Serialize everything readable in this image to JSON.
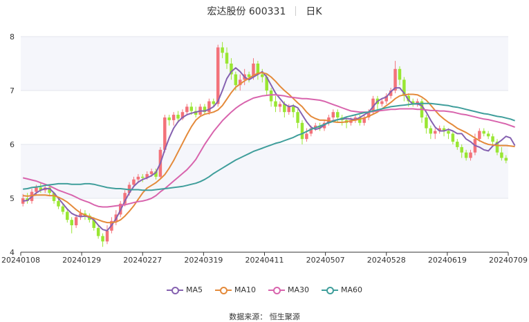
{
  "title": {
    "name": "宏达股份 600331",
    "period": "日K"
  },
  "source": "数据来源： 恒生聚源",
  "colors": {
    "up": "#f3727a",
    "down": "#99e632",
    "ma5": "#8561b0",
    "ma10": "#e48a3a",
    "ma30": "#d864ad",
    "ma60": "#3f9e9b"
  },
  "chart_data": {
    "type": "candlestick",
    "y_ticks": [
      "4",
      "5",
      "6",
      "7",
      "8"
    ],
    "ylim": [
      4,
      8
    ],
    "x_labels": [
      "20240108",
      "20240129",
      "20240227",
      "20240319",
      "20240411",
      "20240507",
      "20240528",
      "20240619",
      "20240709"
    ],
    "legend": [
      "MA5",
      "MA10",
      "MA30",
      "MA60"
    ],
    "grid": true,
    "series": [
      {
        "name": "MA5",
        "values": [
          4.95,
          4.96,
          5.03,
          5.1,
          5.15,
          5.18,
          5.18,
          5.1,
          5.0,
          4.9,
          4.8,
          4.72,
          4.68,
          4.66,
          4.67,
          4.65,
          4.6,
          4.5,
          4.42,
          4.4,
          4.5,
          4.62,
          4.78,
          4.95,
          5.1,
          5.22,
          5.3,
          5.35,
          5.38,
          5.42,
          5.48,
          5.65,
          5.9,
          6.12,
          6.3,
          6.42,
          6.5,
          6.55,
          6.58,
          6.6,
          6.62,
          6.62,
          6.65,
          6.7,
          6.8,
          7.0,
          7.22,
          7.35,
          7.42,
          7.35,
          7.25,
          7.2,
          7.25,
          7.3,
          7.35,
          7.25,
          7.1,
          6.95,
          6.85,
          6.75,
          6.7,
          6.72,
          6.68,
          6.55,
          6.42,
          6.32,
          6.28,
          6.3,
          6.36,
          6.42,
          6.44,
          6.46,
          6.47,
          6.48,
          6.47,
          6.46,
          6.5,
          6.55,
          6.6,
          6.7,
          6.8,
          6.85,
          6.88,
          6.98,
          7.05,
          7.05,
          6.95,
          6.82,
          6.75,
          6.75,
          6.72,
          6.6,
          6.45,
          6.32,
          6.25,
          6.25,
          6.28,
          6.25,
          6.2,
          6.2,
          6.1,
          6.05,
          5.98,
          5.95,
          5.9,
          5.88,
          5.97,
          6.02,
          6.08,
          6.15,
          6.12,
          5.98
        ]
      },
      {
        "name": "MA10",
        "values": [
          5.05,
          5.04,
          5.05,
          5.06,
          5.06,
          5.06,
          5.05,
          5.05,
          5.02,
          4.98,
          4.93,
          4.86,
          4.79,
          4.73,
          4.69,
          4.66,
          4.63,
          4.6,
          4.57,
          4.55,
          4.55,
          4.56,
          4.6,
          4.67,
          4.76,
          4.86,
          4.98,
          5.1,
          5.19,
          5.24,
          5.29,
          5.36,
          5.44,
          5.56,
          5.7,
          5.86,
          6.02,
          6.18,
          6.33,
          6.45,
          6.52,
          6.56,
          6.58,
          6.6,
          6.64,
          6.72,
          6.84,
          6.96,
          7.06,
          7.12,
          7.18,
          7.23,
          7.28,
          7.32,
          7.33,
          7.31,
          7.25,
          7.17,
          7.08,
          7.0,
          6.93,
          6.85,
          6.77,
          6.7,
          6.6,
          6.52,
          6.48,
          6.45,
          6.45,
          6.44,
          6.42,
          6.41,
          6.41,
          6.42,
          6.44,
          6.45,
          6.47,
          6.49,
          6.52,
          6.56,
          6.6,
          6.66,
          6.72,
          6.78,
          6.85,
          6.9,
          6.92,
          6.93,
          6.93,
          6.92,
          6.88,
          6.82,
          6.73,
          6.63,
          6.54,
          6.47,
          6.41,
          6.36,
          6.3,
          6.26,
          6.22,
          6.17,
          6.12,
          6.07,
          6.03,
          6.0,
          5.99,
          5.98,
          5.98,
          5.98,
          5.97,
          5.96
        ]
      },
      {
        "name": "MA30",
        "values": [
          5.38,
          5.36,
          5.34,
          5.32,
          5.29,
          5.26,
          5.23,
          5.19,
          5.15,
          5.12,
          5.09,
          5.06,
          5.02,
          4.98,
          4.95,
          4.92,
          4.88,
          4.85,
          4.84,
          4.84,
          4.85,
          4.86,
          4.87,
          4.88,
          4.9,
          4.92,
          4.94,
          4.95,
          4.97,
          5.0,
          5.05,
          5.12,
          5.18,
          5.25,
          5.32,
          5.39,
          5.46,
          5.53,
          5.62,
          5.72,
          5.86,
          6.0,
          6.12,
          6.24,
          6.34,
          6.44,
          6.52,
          6.6,
          6.67,
          6.73,
          6.78,
          6.82,
          6.86,
          6.88,
          6.9,
          6.91,
          6.92,
          6.92,
          6.91,
          6.9,
          6.88,
          6.87,
          6.86,
          6.85,
          6.85,
          6.84,
          6.83,
          6.82,
          6.8,
          6.77,
          6.74,
          6.71,
          6.68,
          6.65,
          6.62,
          6.61,
          6.6,
          6.6,
          6.6,
          6.61,
          6.62,
          6.63,
          6.64,
          6.65,
          6.65,
          6.66,
          6.66,
          6.66,
          6.66,
          6.65,
          6.65,
          6.64,
          6.63,
          6.63,
          6.62,
          6.62,
          6.61,
          6.6,
          6.58,
          6.56,
          6.55,
          6.53,
          6.51,
          6.49,
          6.47,
          6.46,
          6.44,
          6.42,
          6.4,
          6.38,
          6.35,
          6.32
        ]
      },
      {
        "name": "MA60",
        "values": [
          5.17,
          5.18,
          5.2,
          5.21,
          5.22,
          5.24,
          5.25,
          5.26,
          5.27,
          5.27,
          5.27,
          5.26,
          5.26,
          5.26,
          5.27,
          5.27,
          5.26,
          5.24,
          5.22,
          5.2,
          5.19,
          5.18,
          5.18,
          5.17,
          5.16,
          5.16,
          5.16,
          5.15,
          5.15,
          5.15,
          5.16,
          5.17,
          5.18,
          5.19,
          5.2,
          5.21,
          5.22,
          5.24,
          5.26,
          5.28,
          5.31,
          5.35,
          5.4,
          5.46,
          5.51,
          5.56,
          5.61,
          5.66,
          5.71,
          5.75,
          5.79,
          5.83,
          5.87,
          5.9,
          5.93,
          5.96,
          5.99,
          6.02,
          6.04,
          6.07,
          6.1,
          6.13,
          6.17,
          6.2,
          6.24,
          6.28,
          6.31,
          6.34,
          6.37,
          6.4,
          6.43,
          6.46,
          6.48,
          6.51,
          6.53,
          6.55,
          6.57,
          6.59,
          6.6,
          6.62,
          6.64,
          6.66,
          6.68,
          6.7,
          6.71,
          6.72,
          6.73,
          6.74,
          6.75,
          6.76,
          6.76,
          6.76,
          6.76,
          6.75,
          6.74,
          6.73,
          6.72,
          6.7,
          6.69,
          6.67,
          6.65,
          6.63,
          6.61,
          6.59,
          6.57,
          6.56,
          6.54,
          6.52,
          6.51,
          6.49,
          6.47,
          6.44
        ]
      }
    ],
    "candles": [
      [
        4.9,
        5.0,
        4.85,
        5.08
      ],
      [
        5.0,
        4.95,
        4.9,
        5.1
      ],
      [
        4.95,
        5.12,
        4.9,
        5.18
      ],
      [
        5.12,
        5.2,
        5.05,
        5.25
      ],
      [
        5.2,
        5.15,
        5.1,
        5.28
      ],
      [
        5.15,
        5.2,
        5.1,
        5.25
      ],
      [
        5.2,
        5.1,
        5.05,
        5.22
      ],
      [
        5.1,
        4.95,
        4.9,
        5.12
      ],
      [
        4.95,
        4.85,
        4.8,
        5.0
      ],
      [
        4.85,
        4.75,
        4.7,
        4.9
      ],
      [
        4.75,
        4.6,
        4.55,
        4.8
      ],
      [
        4.6,
        4.5,
        4.35,
        4.65
      ],
      [
        4.5,
        4.65,
        4.45,
        4.7
      ],
      [
        4.65,
        4.72,
        4.6,
        4.8
      ],
      [
        4.72,
        4.68,
        4.6,
        4.78
      ],
      [
        4.68,
        4.6,
        4.55,
        4.72
      ],
      [
        4.6,
        4.45,
        4.4,
        4.65
      ],
      [
        4.45,
        4.3,
        4.25,
        4.5
      ],
      [
        4.3,
        4.2,
        4.1,
        4.35
      ],
      [
        4.2,
        4.4,
        4.15,
        4.5
      ],
      [
        4.4,
        4.58,
        4.35,
        4.65
      ],
      [
        4.58,
        4.7,
        4.5,
        4.78
      ],
      [
        4.7,
        4.9,
        4.65,
        4.95
      ],
      [
        4.9,
        5.1,
        4.85,
        5.15
      ],
      [
        5.1,
        5.25,
        5.05,
        5.3
      ],
      [
        5.25,
        5.35,
        5.2,
        5.4
      ],
      [
        5.35,
        5.4,
        5.3,
        5.45
      ],
      [
        5.4,
        5.38,
        5.3,
        5.45
      ],
      [
        5.38,
        5.45,
        5.35,
        5.5
      ],
      [
        5.45,
        5.5,
        5.4,
        5.55
      ],
      [
        5.5,
        5.4,
        5.35,
        5.55
      ],
      [
        5.4,
        5.9,
        5.38,
        5.95
      ],
      [
        5.9,
        6.5,
        5.85,
        6.55
      ],
      [
        6.5,
        6.45,
        6.35,
        6.55
      ],
      [
        6.45,
        6.55,
        6.35,
        6.6
      ],
      [
        6.55,
        6.48,
        6.4,
        6.62
      ],
      [
        6.48,
        6.6,
        6.45,
        6.65
      ],
      [
        6.6,
        6.7,
        6.55,
        6.75
      ],
      [
        6.7,
        6.62,
        6.55,
        6.78
      ],
      [
        6.62,
        6.55,
        6.5,
        6.7
      ],
      [
        6.55,
        6.7,
        6.52,
        6.75
      ],
      [
        6.7,
        6.6,
        6.55,
        6.75
      ],
      [
        6.6,
        6.8,
        6.55,
        6.85
      ],
      [
        6.8,
        6.75,
        6.7,
        6.85
      ],
      [
        6.75,
        7.8,
        6.7,
        7.85
      ],
      [
        7.8,
        7.7,
        7.6,
        7.9
      ],
      [
        7.7,
        7.5,
        7.4,
        7.8
      ],
      [
        7.5,
        7.3,
        7.2,
        7.6
      ],
      [
        7.3,
        7.1,
        7.0,
        7.35
      ],
      [
        7.1,
        7.2,
        7.0,
        7.3
      ],
      [
        7.2,
        7.3,
        7.1,
        7.4
      ],
      [
        7.3,
        7.25,
        7.15,
        7.35
      ],
      [
        7.25,
        7.5,
        7.2,
        7.6
      ],
      [
        7.5,
        7.3,
        7.2,
        7.55
      ],
      [
        7.3,
        7.25,
        7.15,
        7.4
      ],
      [
        7.25,
        7.0,
        6.9,
        7.3
      ],
      [
        7.0,
        6.8,
        6.7,
        7.05
      ],
      [
        6.8,
        6.7,
        6.6,
        6.9
      ],
      [
        6.7,
        6.75,
        6.6,
        6.8
      ],
      [
        6.75,
        6.6,
        6.5,
        6.8
      ],
      [
        6.6,
        6.7,
        6.55,
        6.75
      ],
      [
        6.7,
        6.6,
        6.5,
        6.75
      ],
      [
        6.6,
        6.4,
        6.3,
        6.65
      ],
      [
        6.4,
        6.1,
        6.0,
        6.45
      ],
      [
        6.1,
        6.2,
        6.05,
        6.3
      ],
      [
        6.2,
        6.3,
        6.15,
        6.35
      ],
      [
        6.3,
        6.35,
        6.25,
        6.4
      ],
      [
        6.35,
        6.3,
        6.25,
        6.4
      ],
      [
        6.3,
        6.4,
        6.25,
        6.45
      ],
      [
        6.4,
        6.5,
        6.35,
        6.55
      ],
      [
        6.5,
        6.6,
        6.45,
        6.65
      ],
      [
        6.6,
        6.5,
        6.4,
        6.65
      ],
      [
        6.5,
        6.45,
        6.35,
        6.55
      ],
      [
        6.45,
        6.4,
        6.3,
        6.5
      ],
      [
        6.4,
        6.45,
        6.35,
        6.5
      ],
      [
        6.45,
        6.5,
        6.4,
        6.55
      ],
      [
        6.5,
        6.4,
        6.35,
        6.55
      ],
      [
        6.4,
        6.5,
        6.35,
        6.55
      ],
      [
        6.5,
        6.6,
        6.45,
        6.65
      ],
      [
        6.6,
        6.85,
        6.55,
        6.9
      ],
      [
        6.85,
        6.75,
        6.65,
        6.9
      ],
      [
        6.75,
        6.8,
        6.7,
        6.85
      ],
      [
        6.8,
        6.9,
        6.75,
        6.95
      ],
      [
        6.9,
        7.0,
        6.85,
        7.05
      ],
      [
        7.0,
        7.4,
        6.95,
        7.55
      ],
      [
        7.4,
        7.2,
        7.1,
        7.45
      ],
      [
        7.2,
        6.9,
        6.8,
        7.25
      ],
      [
        6.9,
        6.8,
        6.7,
        6.95
      ],
      [
        6.8,
        6.75,
        6.7,
        6.85
      ],
      [
        6.75,
        6.8,
        6.7,
        6.85
      ],
      [
        6.8,
        6.5,
        6.4,
        6.85
      ],
      [
        6.5,
        6.3,
        6.2,
        6.55
      ],
      [
        6.3,
        6.2,
        6.1,
        6.35
      ],
      [
        6.2,
        6.25,
        6.1,
        6.3
      ],
      [
        6.25,
        6.3,
        6.2,
        6.35
      ],
      [
        6.3,
        6.25,
        6.15,
        6.35
      ],
      [
        6.25,
        6.2,
        6.1,
        6.3
      ],
      [
        6.2,
        6.05,
        6.0,
        6.25
      ],
      [
        6.05,
        5.95,
        5.9,
        6.1
      ],
      [
        5.95,
        5.85,
        5.75,
        6.0
      ],
      [
        5.85,
        5.75,
        5.7,
        5.9
      ],
      [
        5.75,
        5.85,
        5.7,
        5.9
      ],
      [
        5.85,
        6.1,
        5.8,
        6.2
      ],
      [
        6.1,
        6.25,
        6.05,
        6.3
      ],
      [
        6.25,
        6.2,
        6.15,
        6.3
      ],
      [
        6.2,
        6.15,
        6.1,
        6.25
      ],
      [
        6.15,
        6.05,
        6.0,
        6.2
      ],
      [
        6.05,
        5.85,
        5.8,
        6.1
      ],
      [
        5.85,
        5.75,
        5.7,
        5.95
      ],
      [
        5.75,
        5.7,
        5.65,
        5.8
      ]
    ]
  }
}
